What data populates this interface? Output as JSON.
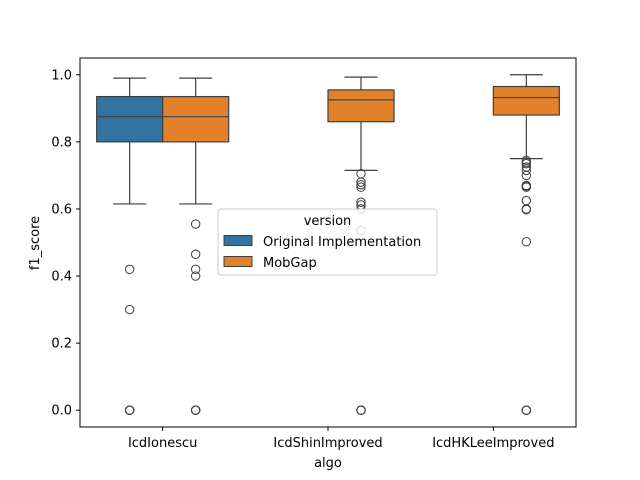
{
  "chart_data": {
    "type": "box",
    "xlabel": "algo",
    "ylabel": "f1_score",
    "ylim": [
      -0.05,
      1.05
    ],
    "yticks": [
      "0.0",
      "0.2",
      "0.4",
      "0.6",
      "0.8",
      "1.0"
    ],
    "categories": [
      "IcdIonescu",
      "IcdShinImproved",
      "IcdHKLeeImproved"
    ],
    "legend": {
      "title": "version",
      "placement": "center",
      "entries": [
        {
          "name": "Original Implementation",
          "color": "#3274a1"
        },
        {
          "name": "MobGap",
          "color": "#e1812c"
        }
      ]
    },
    "series": [
      {
        "name": "Original Implementation",
        "color": "#3274a1",
        "boxes": [
          {
            "category": "IcdIonescu",
            "whisker_low": 0.615,
            "q1": 0.8,
            "median": 0.875,
            "q3": 0.935,
            "whisker_high": 0.99,
            "outliers": [
              0.42,
              0.3,
              0.0,
              0.0,
              0.0,
              0.0
            ]
          }
        ]
      },
      {
        "name": "MobGap",
        "color": "#e1812c",
        "boxes": [
          {
            "category": "IcdIonescu",
            "whisker_low": 0.615,
            "q1": 0.8,
            "median": 0.875,
            "q3": 0.935,
            "whisker_high": 0.99,
            "outliers": [
              0.555,
              0.465,
              0.42,
              0.4,
              0.0,
              0.0,
              0.0,
              0.0
            ]
          },
          {
            "category": "IcdShinImproved",
            "whisker_low": 0.715,
            "q1": 0.86,
            "median": 0.925,
            "q3": 0.955,
            "whisker_high": 0.993,
            "outliers": [
              0.705,
              0.68,
              0.672,
              0.665,
              0.62,
              0.612,
              0.6,
              0.535,
              0.0,
              0.0,
              0.0,
              0.0
            ]
          },
          {
            "category": "IcdHKLeeImproved",
            "whisker_low": 0.75,
            "q1": 0.88,
            "median": 0.932,
            "q3": 0.965,
            "whisker_high": 1.0,
            "outliers": [
              0.745,
              0.74,
              0.735,
              0.725,
              0.715,
              0.7,
              0.67,
              0.668,
              0.665,
              0.625,
              0.6,
              0.598,
              0.502,
              0.0,
              0.0,
              0.0,
              0.0
            ]
          }
        ]
      }
    ]
  }
}
